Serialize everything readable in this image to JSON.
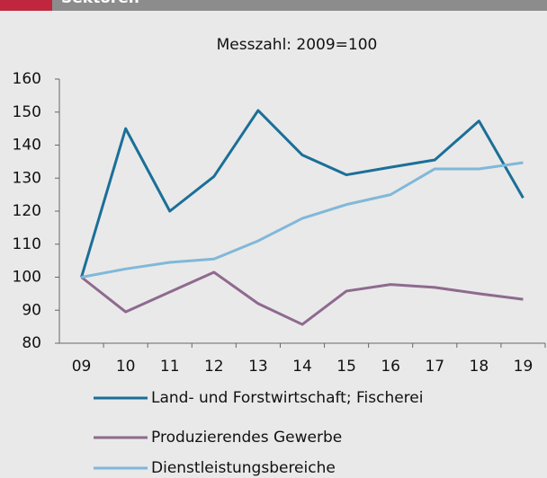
{
  "header": {
    "title": "Sektoren"
  },
  "chart_data": {
    "type": "line",
    "subtitle": "Messzahl: 2009=100",
    "categories": [
      "09",
      "10",
      "11",
      "12",
      "13",
      "14",
      "15",
      "16",
      "17",
      "18",
      "19"
    ],
    "series": [
      {
        "name": "Land- und Forstwirtschaft; Fischerei",
        "color": "#1b6f98",
        "values": [
          100,
          145,
          120,
          130.5,
          150.5,
          137,
          131,
          133.3,
          135.5,
          147.3,
          124
        ]
      },
      {
        "name": "Produzierendes Gewerbe",
        "color": "#8e6a8f",
        "values": [
          100,
          89.5,
          95.5,
          101.5,
          92,
          85.7,
          95.8,
          97.8,
          96.9,
          95,
          93.3
        ]
      },
      {
        "name": "Dienstleistungsbereiche",
        "color": "#80b8d9",
        "values": [
          100,
          102.5,
          104.5,
          105.5,
          111,
          117.8,
          122,
          125,
          132.8,
          132.8,
          134.7
        ]
      }
    ],
    "ylim": [
      80,
      160
    ],
    "yticks": [
      80,
      90,
      100,
      110,
      120,
      130,
      140,
      150,
      160
    ],
    "grid": false
  }
}
